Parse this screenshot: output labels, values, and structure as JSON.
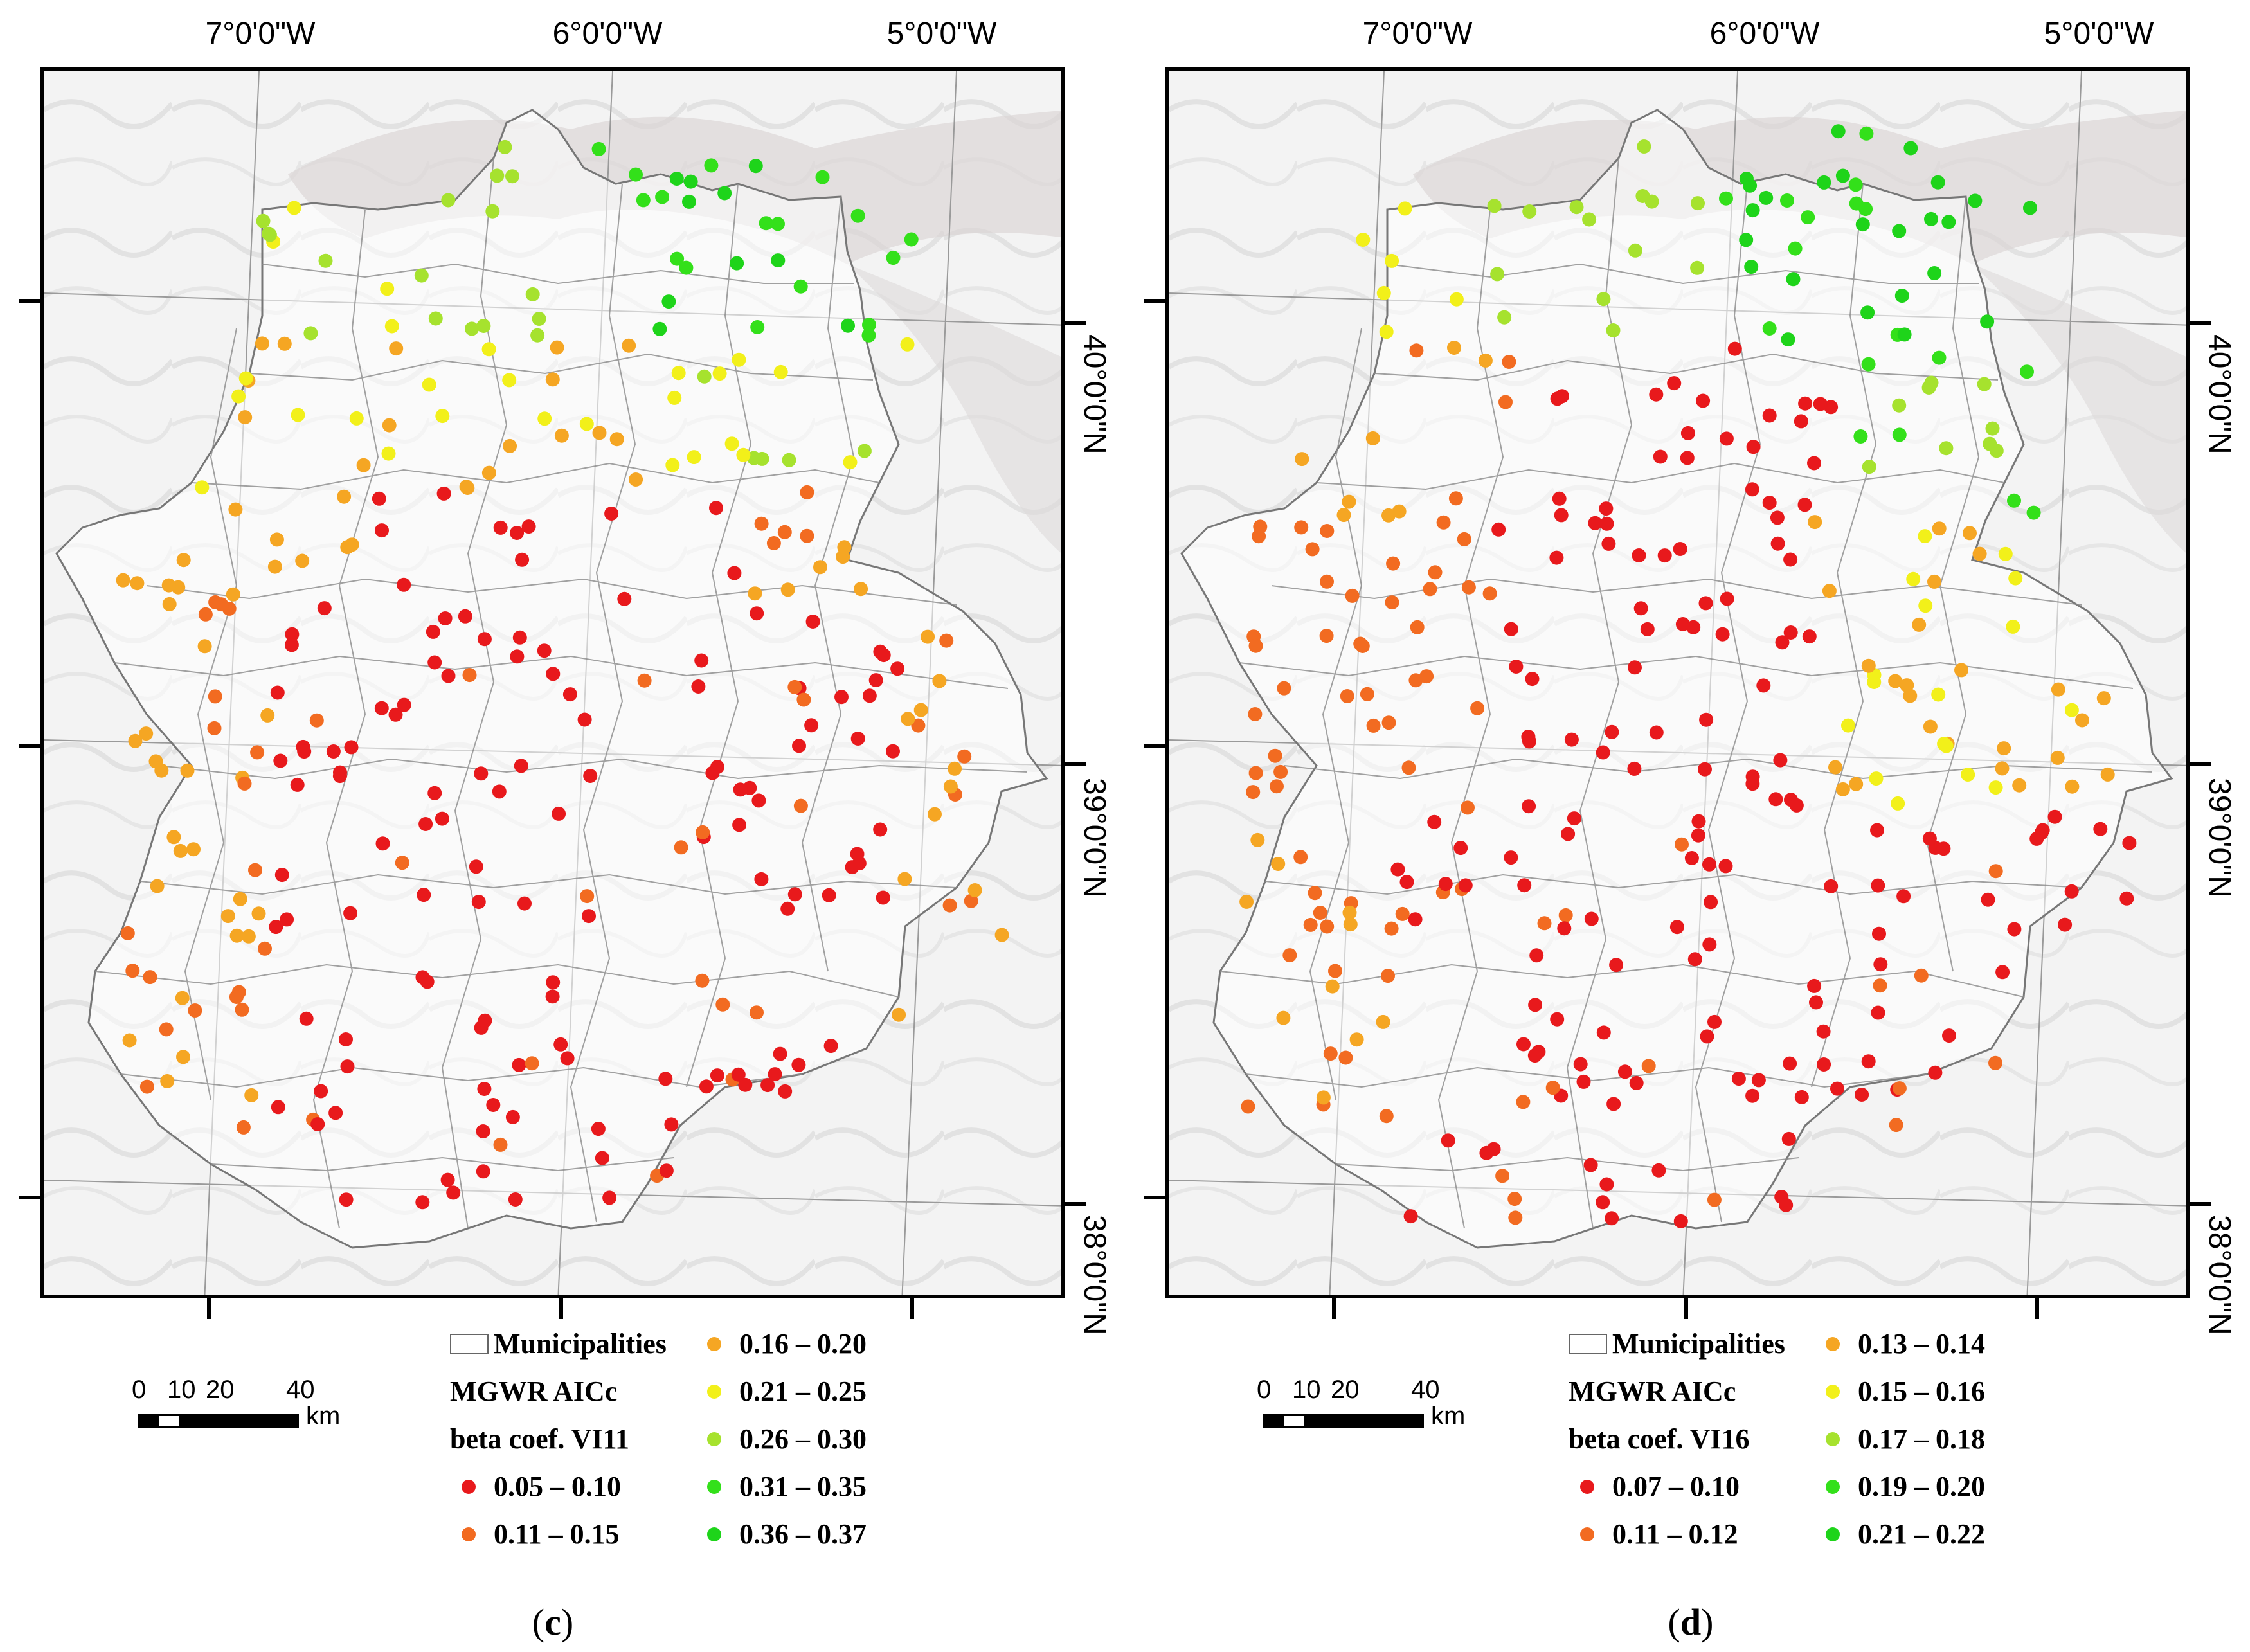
{
  "figure": {
    "panels": [
      {
        "id": "c",
        "caption_letter": "c",
        "variable": "VI11",
        "lon_labels": [
          "7°0'0\"W",
          "6°0'0\"W",
          "5°0'0\"W"
        ],
        "lat_labels": [
          "40°0'0\"N",
          "39°0'0\"N",
          "38°0'0\"N"
        ],
        "legend": {
          "boundary_label": "Municipalities",
          "title_line1": "MGWR AICc",
          "title_line2": "beta coef. VI11",
          "classes": [
            {
              "label": "0.05 – 0.10",
              "color": "#e8191c"
            },
            {
              "label": "0.11 – 0.15",
              "color": "#f26b21"
            },
            {
              "label": "0.16 – 0.20",
              "color": "#f5a623"
            },
            {
              "label": "0.21 – 0.25",
              "color": "#f2f01a"
            },
            {
              "label": "0.26 – 0.30",
              "color": "#a6e22e"
            },
            {
              "label": "0.31 – 0.35",
              "color": "#33e01a"
            },
            {
              "label": "0.36 – 0.37",
              "color": "#1ed41a"
            }
          ]
        },
        "scale": {
          "ticks": [
            "0",
            "10",
            "20",
            "40"
          ],
          "unit": "km"
        }
      },
      {
        "id": "d",
        "caption_letter": "d",
        "variable": "VI16",
        "lon_labels": [
          "7°0'0\"W",
          "6°0'0\"W",
          "5°0'0\"W"
        ],
        "lat_labels": [
          "40°0'0\"N",
          "39°0'0\"N",
          "38°0'0\"N"
        ],
        "legend": {
          "boundary_label": "Municipalities",
          "title_line1": "MGWR AICc",
          "title_line2": "beta coef. VI16",
          "classes": [
            {
              "label": "0.07 – 0.10",
              "color": "#e8191c"
            },
            {
              "label": "0.11 – 0.12",
              "color": "#f26b21"
            },
            {
              "label": "0.13 – 0.14",
              "color": "#f5a623"
            },
            {
              "label": "0.15 – 0.16",
              "color": "#f2f01a"
            },
            {
              "label": "0.17 – 0.18",
              "color": "#a6e22e"
            },
            {
              "label": "0.19 – 0.20",
              "color": "#33e01a"
            },
            {
              "label": "0.21 – 0.22",
              "color": "#1ed41a"
            }
          ]
        },
        "scale": {
          "ticks": [
            "0",
            "10",
            "20",
            "40"
          ],
          "unit": "km"
        }
      }
    ]
  },
  "colors": {
    "boundary": "#777777",
    "graticule": "#9a9a9a",
    "relief_light": "#eeeeee",
    "relief_dark": "#cfcfcf"
  }
}
